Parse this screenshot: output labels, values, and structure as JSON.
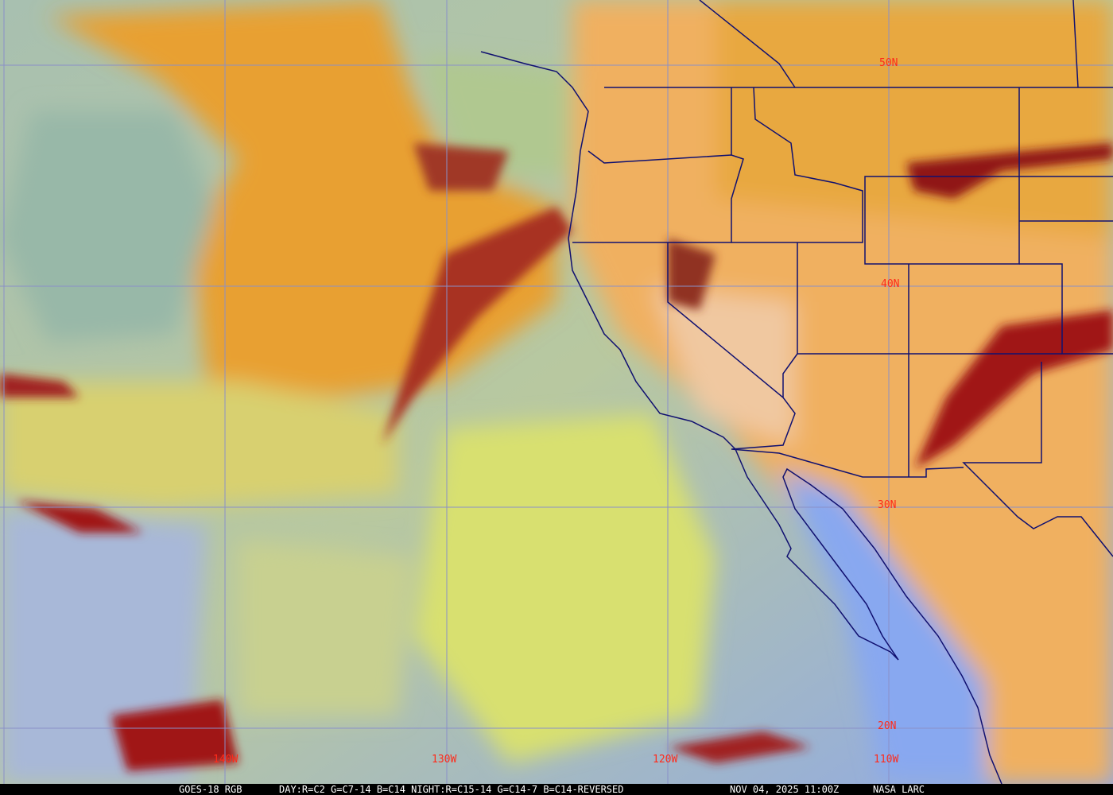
{
  "caption": {
    "product": "GOES-18 RGB",
    "recipe": "DAY:R=C2 G=C7-14 B=C14 NIGHT:R=C15-14 G=C14-7 B=C14-REVERSED",
    "timestamp": "NOV 04, 2025 11:00Z",
    "source": "NASA LARC"
  },
  "grid_labels": {
    "lat": [
      "50N",
      "40N",
      "30N",
      "20N"
    ],
    "lon": [
      "140W",
      "130W",
      "120W",
      "110W"
    ]
  },
  "colors": {
    "grid": "#8a90c8",
    "borders": "#101070",
    "labels": "#ff2a1a",
    "high_cloud": "#e8a040",
    "ocean_clear": "#8fa8e8",
    "low_cloud": "#d8e070",
    "deep_cloud": "#a01818"
  }
}
